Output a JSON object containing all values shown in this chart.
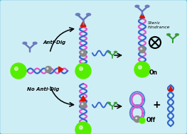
{
  "bg_color": "#ceeef5",
  "border_color": "#5bb8d4",
  "pink": "#dd55cc",
  "blue": "#3366cc",
  "green_ball": "#55ee00",
  "gray_ball": "#888888",
  "red_tri": "#dd1100",
  "ab_blue": "#6677bb",
  "ab_green": "#339933",
  "text_anti_dig": "Anti-Dig",
  "text_no_anti_dig": "No Anti-Dig",
  "text_steric": "Steric\nhindrance",
  "text_on": "On",
  "text_off": "Off",
  "figsize": [
    2.63,
    1.89
  ],
  "dpi": 100
}
